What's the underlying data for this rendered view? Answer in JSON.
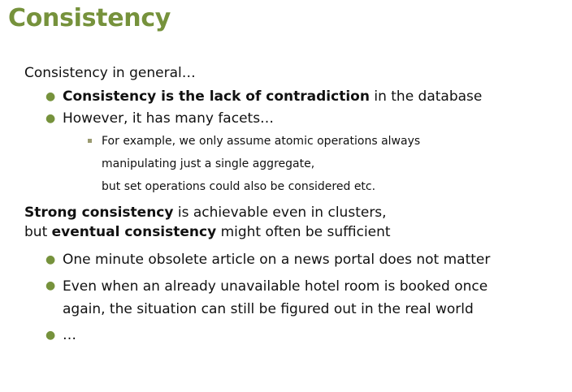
{
  "title": "Consistency",
  "intro": "Consistency in general…",
  "bullets1": {
    "b1_bold": "Consistency is the lack of contradiction",
    "b1_rest": " in the database",
    "b2": "However, it has many facets…",
    "sub": {
      "line1": "For example, we only assume atomic operations always",
      "line2": "manipulating just a single aggregate,",
      "line3": "but set operations could also be considered etc."
    }
  },
  "para2": {
    "strong_bold": "Strong consistency",
    "strong_rest": " is achievable even in clusters,",
    "but": "but ",
    "eventual_bold": "eventual consistency",
    "eventual_rest": " might often be sufficient"
  },
  "bullets2": {
    "b1": "One minute obsolete article on a news portal does not matter",
    "b2_line1": "Even when an already unavailable hotel room is booked once",
    "b2_line2": "again, the situation can still be figured out in the real world",
    "b3": "…"
  },
  "colors": {
    "accent": "#76923c",
    "text": "#111111",
    "sub_bullet": "#9a9a70"
  }
}
